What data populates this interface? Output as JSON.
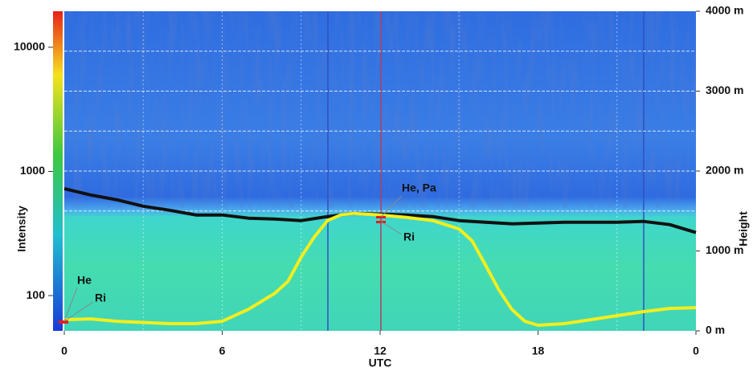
{
  "chart_data": {
    "type": "line",
    "x_label": "UTC",
    "y_label": "Height",
    "colorbar_label": "Intensity",
    "x": [
      0,
      1,
      2,
      4,
      5,
      6,
      7,
      8,
      8.5,
      9,
      9.5,
      10,
      10.5,
      11,
      12,
      13,
      14,
      15,
      15.5,
      16,
      16.5,
      17,
      17.5,
      18,
      19,
      20,
      21,
      22,
      23,
      24
    ],
    "series": [
      {
        "color": "#f2ee1e",
        "x": [
          0,
          1,
          2,
          4,
          5,
          6,
          7,
          8,
          8.5,
          9,
          9.5,
          10,
          10.5,
          11,
          12,
          13,
          14,
          15,
          15.5,
          16,
          16.5,
          17,
          17.5,
          18,
          19,
          20,
          21,
          22,
          23,
          24
        ],
        "values": [
          140,
          150,
          120,
          90,
          90,
          120,
          270,
          470,
          620,
          925,
          1175,
          1380,
          1450,
          1470,
          1450,
          1420,
          1380,
          1275,
          1125,
          825,
          520,
          270,
          120,
          70,
          90,
          140,
          190,
          240,
          280,
          290
        ]
      },
      {
        "color": "#111111",
        "x": [
          0,
          1,
          2,
          3,
          4,
          5,
          6,
          7,
          8,
          9,
          10,
          11,
          12,
          13,
          14,
          15,
          16,
          17,
          18,
          19,
          20,
          21,
          22,
          23,
          24
        ],
        "values": [
          1780,
          1700,
          1640,
          1560,
          1510,
          1450,
          1450,
          1410,
          1400,
          1380,
          1430,
          1470,
          1460,
          1450,
          1430,
          1380,
          1360,
          1340,
          1350,
          1360,
          1360,
          1360,
          1370,
          1330,
          1230
        ]
      }
    ],
    "xlim": [
      0,
      24
    ],
    "xticks": [
      0,
      6,
      12,
      18,
      {
        "value": 24,
        "label": "0"
      }
    ],
    "ylim": [
      0,
      4000
    ],
    "yticks": [
      {
        "value": 0,
        "label": "0 m"
      },
      {
        "value": 1000,
        "label": "1000 m"
      },
      {
        "value": 2000,
        "label": "2000 m"
      },
      {
        "value": 3000,
        "label": "3000 m"
      },
      {
        "value": 4000,
        "label": "4000 m"
      }
    ],
    "colorbar_lim": [
      52,
      19500
    ],
    "colorbar_ticks": [
      100,
      1000,
      10000
    ],
    "colorbar_log": true,
    "ygrid": [
      1500,
      2000,
      2500,
      3000,
      3500
    ],
    "xgrid": [
      3,
      6,
      9,
      15,
      21
    ],
    "annotations": [
      "He",
      "Ri",
      "He, Pa",
      "Ri"
    ]
  }
}
